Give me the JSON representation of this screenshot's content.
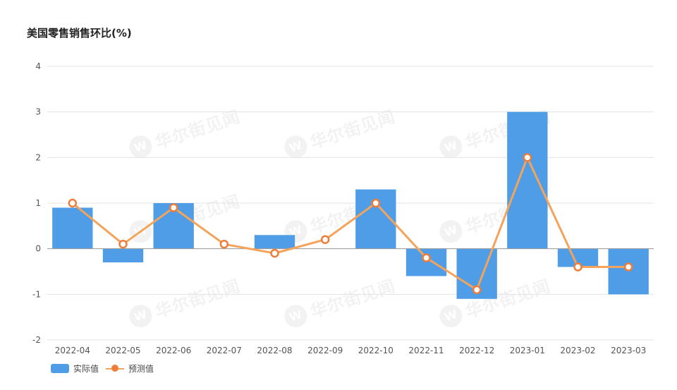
{
  "chart_data": {
    "type": "bar",
    "title": "美国零售销售环比(%)",
    "categories": [
      "2022-04",
      "2022-05",
      "2022-06",
      "2022-07",
      "2022-08",
      "2022-09",
      "2022-10",
      "2022-11",
      "2022-12",
      "2023-01",
      "2023-02",
      "2023-03"
    ],
    "ylim": [
      -2,
      4
    ],
    "yticks": [
      "4",
      "3",
      "2",
      "1",
      "0",
      "-1",
      "-2"
    ],
    "grid": true,
    "legend_position": "bottom-left",
    "series": [
      {
        "name": "实际值",
        "type": "bar",
        "color": "#4e9de6",
        "values": [
          0.9,
          -0.3,
          1.0,
          0.0,
          0.3,
          0.0,
          1.3,
          -0.6,
          -1.1,
          3.0,
          -0.4,
          -1.0
        ]
      },
      {
        "name": "预测值",
        "type": "line",
        "color": "#f4a35a",
        "marker_color": "#ef7d3a",
        "values": [
          1.0,
          0.1,
          0.9,
          0.1,
          -0.1,
          0.2,
          1.0,
          -0.2,
          -0.9,
          2.0,
          -0.4,
          -0.4
        ]
      }
    ]
  },
  "watermark": {
    "text": "华尔街见闻",
    "logo_glyph": "W"
  }
}
